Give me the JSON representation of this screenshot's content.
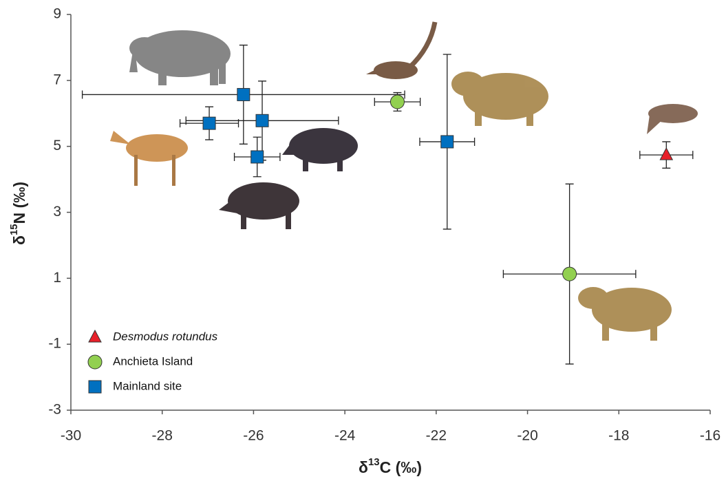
{
  "chart_data": {
    "type": "scatter",
    "x_label": [
      "δ",
      "13",
      "C (‰)"
    ],
    "y_label": [
      "δ",
      "15",
      "N (‰)"
    ],
    "xlim": [
      -30,
      -16
    ],
    "xticks": [
      -30,
      -28,
      -26,
      -24,
      -22,
      -20,
      -18,
      -16
    ],
    "ylim": [
      -3,
      9
    ],
    "yticks": [
      -3,
      -1,
      1,
      3,
      5,
      7,
      9
    ],
    "legend": "lower left",
    "series": [
      {
        "name": "Desmodus rotundus",
        "italic": true,
        "marker": "triangle",
        "color": "#e8202a",
        "x": [
          -16.96
        ],
        "values": [
          4.74
        ],
        "xerr": [
          0.58
        ],
        "yerr": [
          0.4
        ]
      },
      {
        "name": "Anchieta Island",
        "italic": false,
        "marker": "circle",
        "color": "#92d050",
        "x": [
          -22.85,
          -19.08
        ],
        "values": [
          6.35,
          1.13
        ],
        "xerr": [
          0.5,
          1.45
        ],
        "yerr": [
          0.28,
          2.73
        ]
      },
      {
        "name": "Mainland site",
        "italic": false,
        "marker": "square",
        "color": "#0070c0",
        "x": [
          -26.22,
          -26.97,
          -25.81,
          -25.92,
          -21.76
        ],
        "values": [
          6.57,
          5.7,
          5.78,
          4.68,
          5.14
        ],
        "xerr": [
          3.53,
          0.64,
          1.67,
          0.5,
          0.6
        ],
        "yerr": [
          1.5,
          0.5,
          1.2,
          0.6,
          2.65
        ]
      }
    ]
  }
}
